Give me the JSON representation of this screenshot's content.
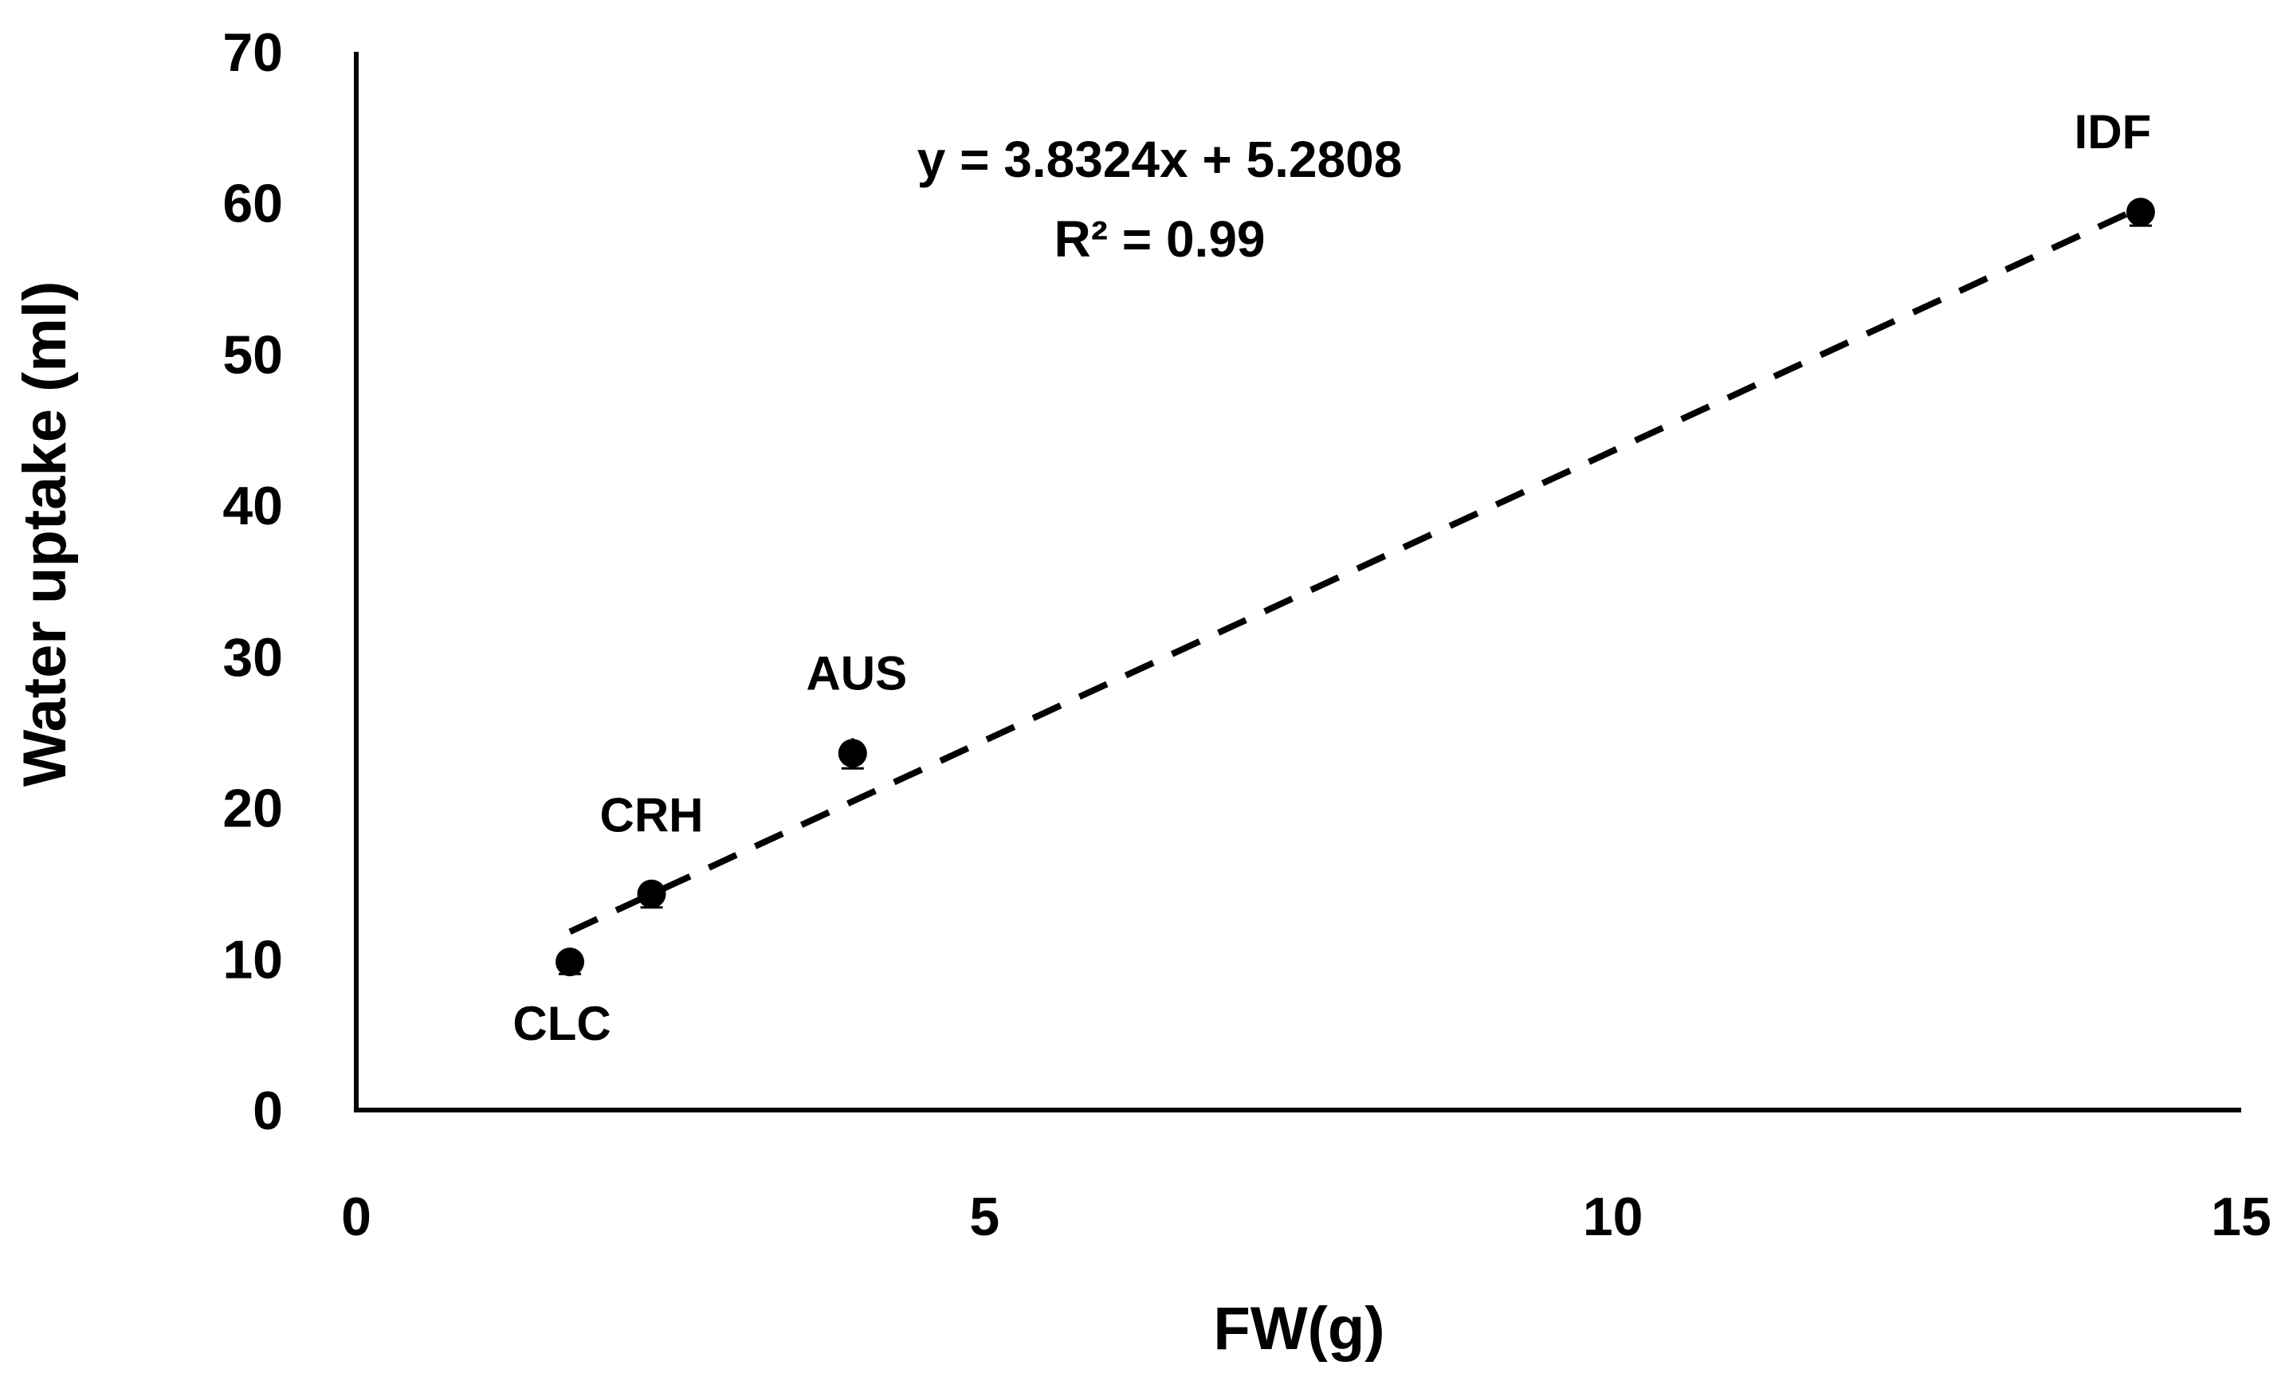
{
  "chart_data": {
    "type": "scatter",
    "title": "",
    "xlabel": "FW(g)",
    "ylabel": "Water uptake (ml)",
    "xlim": [
      0,
      15
    ],
    "ylim": [
      0,
      70
    ],
    "x_ticks": [
      "0",
      "5",
      "10",
      "15"
    ],
    "y_ticks": [
      "0",
      "10",
      "20",
      "30",
      "40",
      "50",
      "60",
      "70"
    ],
    "grid": false,
    "legend": "none",
    "points": [
      {
        "label": "CLC",
        "x": 1.7,
        "y": 9.8,
        "err": 0.8
      },
      {
        "label": "CRH",
        "x": 2.35,
        "y": 14.3,
        "err": 0.9
      },
      {
        "label": "AUS",
        "x": 3.95,
        "y": 23.6,
        "err": 1.0
      },
      {
        "label": "IDF",
        "x": 14.2,
        "y": 59.4,
        "err": 0.9
      }
    ],
    "trendline": {
      "style": "dashed",
      "slope": 3.8324,
      "intercept": 5.2808,
      "x_range": [
        1.7,
        14.2
      ]
    },
    "annotations": {
      "equation": "y = 3.8324x + 5.2808",
      "r_squared": "R² = 0.99"
    },
    "colors": {
      "marker": "#000000",
      "line": "#000000",
      "background": "#ffffff"
    }
  }
}
